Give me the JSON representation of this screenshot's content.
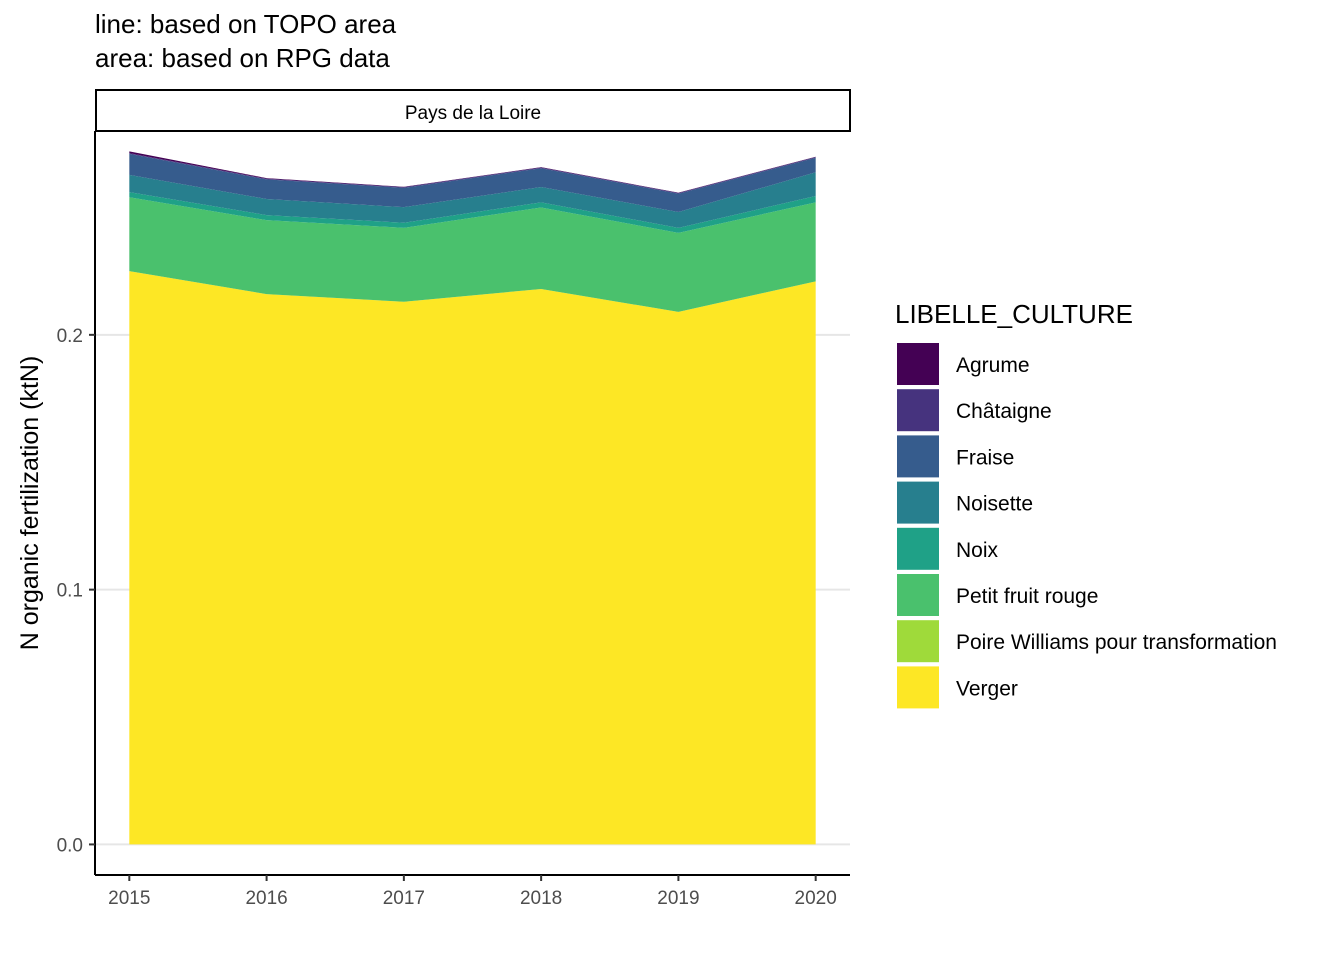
{
  "chart_data": {
    "type": "area",
    "stacked": true,
    "title": "",
    "subtitle_lines": [
      "line: based on TOPO area",
      "area: based on RPG data"
    ],
    "facet": "Pays de la Loire",
    "xlabel": "",
    "ylabel": "N organic fertilization (ktN)",
    "x": [
      2015,
      2016,
      2017,
      2018,
      2019,
      2020
    ],
    "x_tick_labels": [
      "2015",
      "2016",
      "2017",
      "2018",
      "2019",
      "2020"
    ],
    "ylim": [
      -0.012,
      0.28
    ],
    "y_ticks": [
      0.0,
      0.1,
      0.2
    ],
    "y_tick_labels": [
      "0.0",
      "0.1",
      "0.2"
    ],
    "grid": "horizontal major",
    "legend": {
      "title": "LIBELLE_CULTURE",
      "placement": "right"
    },
    "series": [
      {
        "name": "Agrume",
        "color": "#440154",
        "values": [
          0.0007,
          0.0002,
          0.0001,
          0.0001,
          0.0001,
          0.0001
        ]
      },
      {
        "name": "Châtaigne",
        "color": "#46337E",
        "values": [
          0.0003,
          0.0003,
          0.0003,
          0.0003,
          0.0003,
          0.0003
        ]
      },
      {
        "name": "Fraise",
        "color": "#365C8D",
        "values": [
          0.0082,
          0.0077,
          0.0076,
          0.0074,
          0.0072,
          0.0057
        ]
      },
      {
        "name": "Noisette",
        "color": "#277F8E",
        "values": [
          0.0068,
          0.0063,
          0.0061,
          0.006,
          0.0062,
          0.0093
        ]
      },
      {
        "name": "Noix",
        "color": "#1FA187",
        "values": [
          0.002,
          0.002,
          0.002,
          0.002,
          0.002,
          0.0025
        ]
      },
      {
        "name": "Petit fruit rouge",
        "color": "#4AC16D",
        "values": [
          0.029,
          0.029,
          0.029,
          0.032,
          0.031,
          0.031
        ]
      },
      {
        "name": "Poire Williams pour transformation",
        "color": "#9FDA3A",
        "values": [
          0.0,
          0.0,
          0.0,
          0.0,
          0.0,
          0.0
        ]
      },
      {
        "name": "Verger",
        "color": "#FDE725",
        "values": [
          0.225,
          0.216,
          0.213,
          0.218,
          0.209,
          0.221
        ]
      }
    ]
  }
}
